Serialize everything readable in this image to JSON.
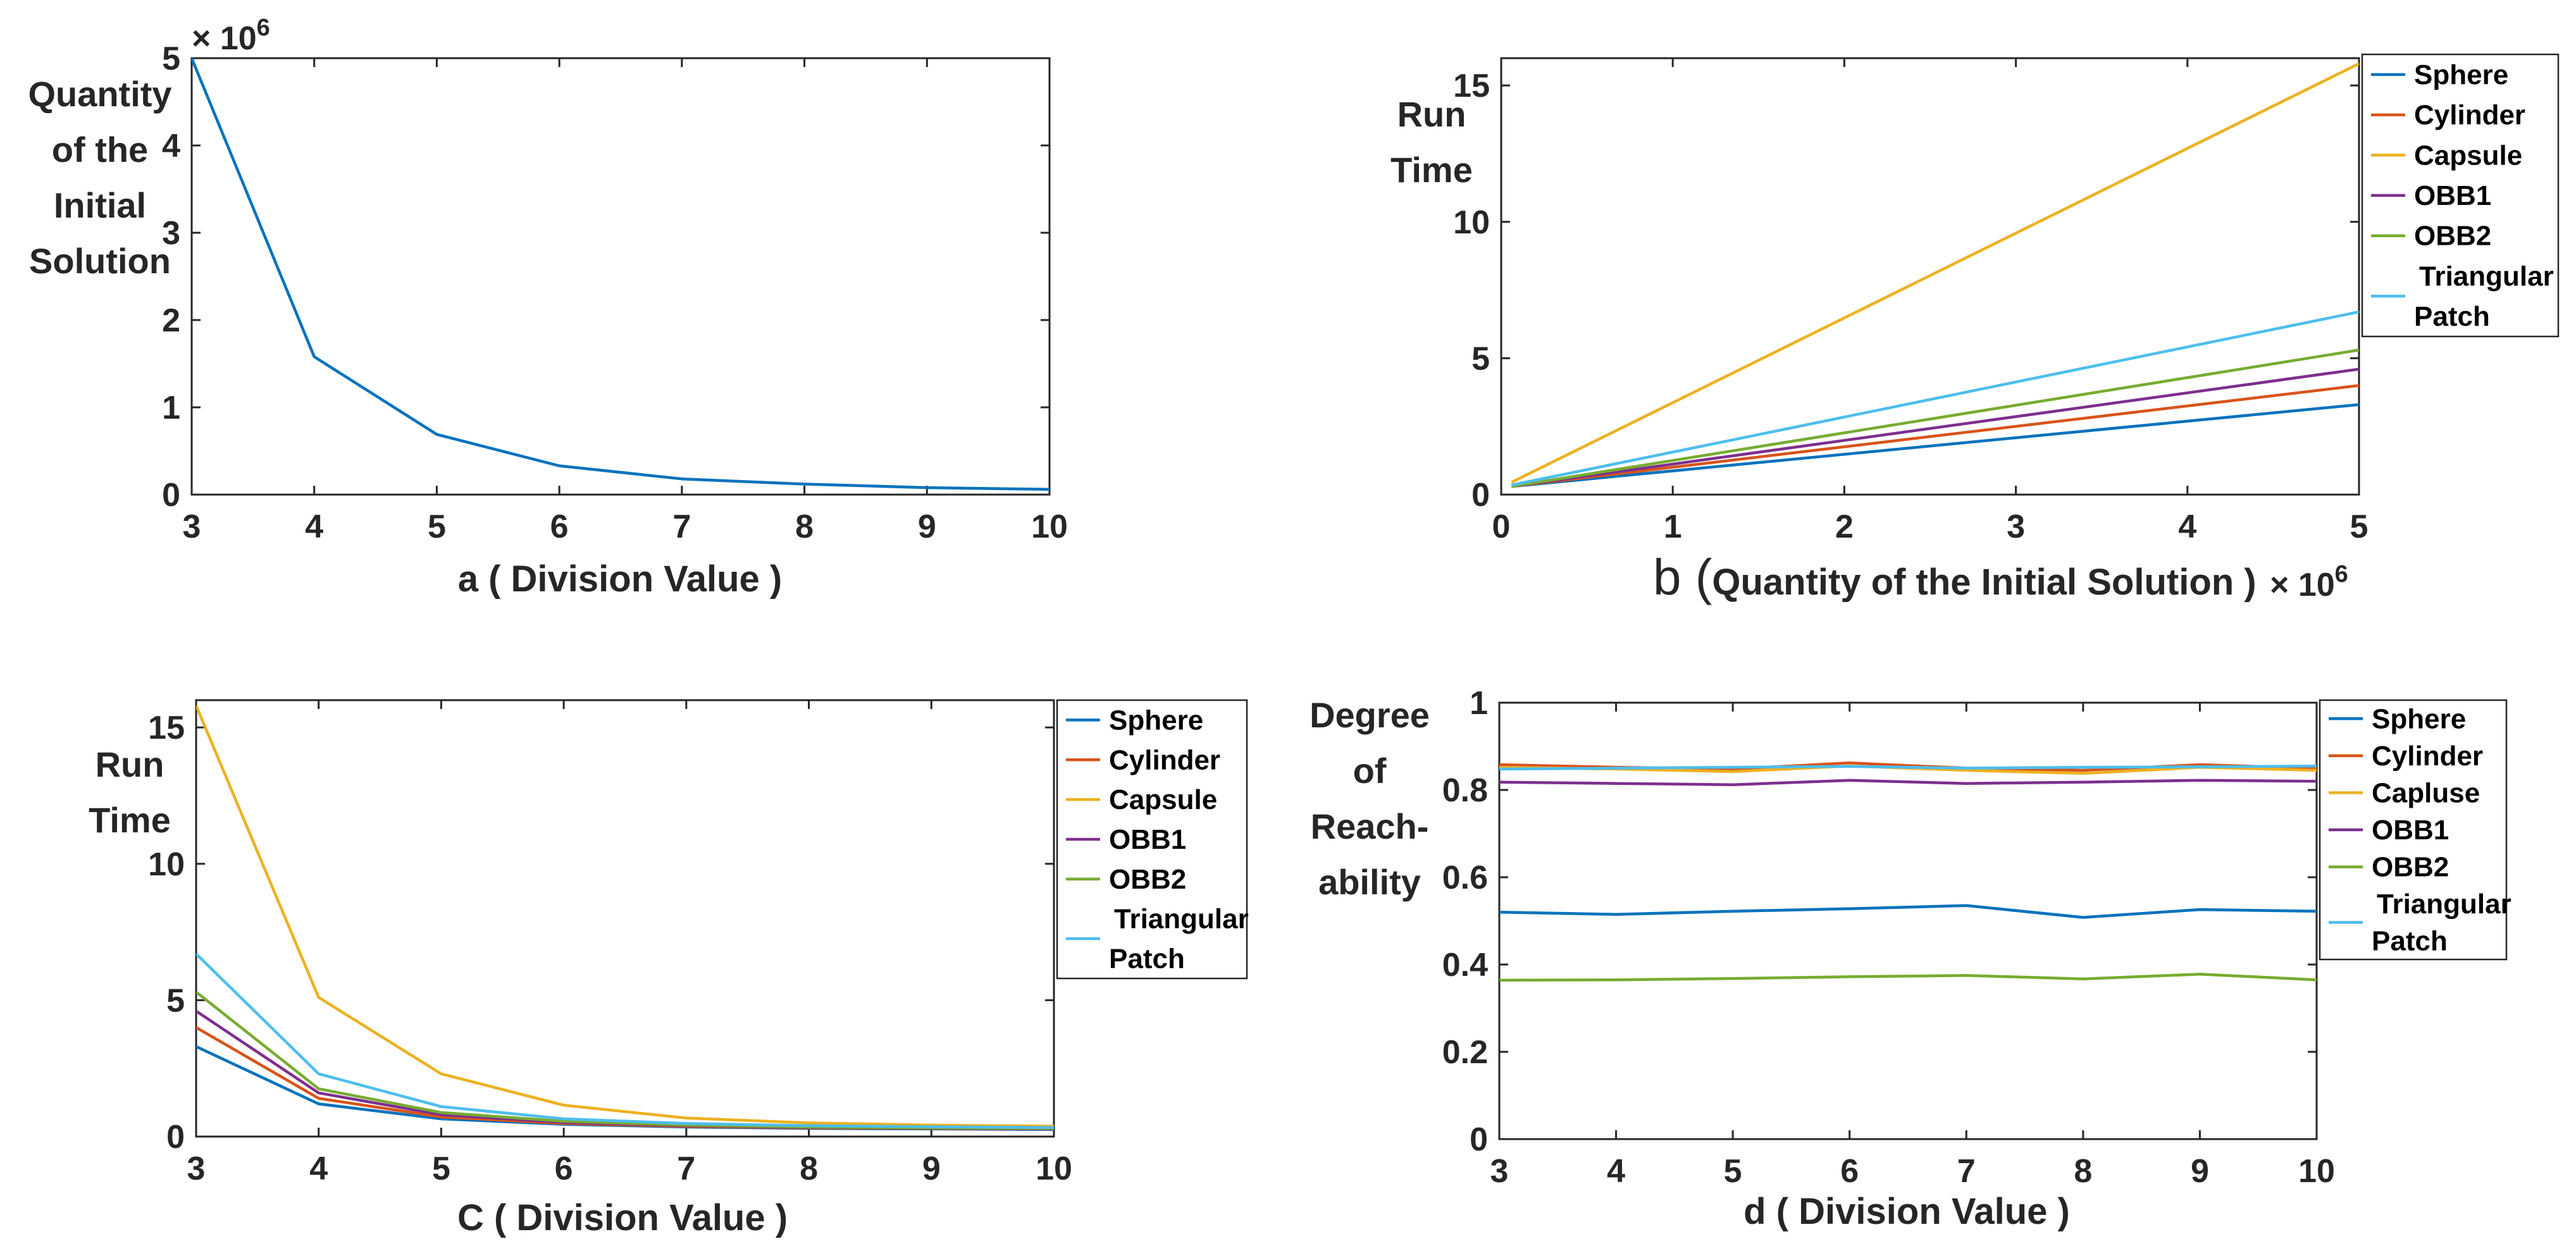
{
  "colors": [
    "#0072BD",
    "#D95319",
    "#EDB120",
    "#7E2F8E",
    "#77AC30",
    "#4DBEEE"
  ],
  "chart_data": [
    {
      "id": "a",
      "type": "line",
      "title": "",
      "xlabel": "a ( Division Value )",
      "ylabel_lines": [
        "Quantity",
        "of the",
        "Initial",
        "Solution"
      ],
      "exponent": "× 10",
      "exponent_power": "6",
      "xlim": [
        3,
        10
      ],
      "ylim": [
        0,
        5
      ],
      "xticks": [
        "3",
        "4",
        "5",
        "6",
        "7",
        "8",
        "9",
        "10"
      ],
      "yticks": [
        "0",
        "1",
        "2",
        "3",
        "4",
        "5"
      ],
      "x": [
        3,
        4,
        5,
        6,
        7,
        8,
        9,
        10
      ],
      "series": [
        {
          "name": "Quantity of the Initial Solution (×10^6)",
          "values": [
            5.0,
            1.58,
            0.69,
            0.33,
            0.18,
            0.12,
            0.08,
            0.06
          ]
        }
      ]
    },
    {
      "id": "b",
      "type": "line",
      "title": "",
      "xlabel_prefix": "b (",
      "xlabel": "Quantity of the Initial Solution )",
      "ylabel_lines": [
        "Run",
        "Time"
      ],
      "x_exponent": "× 10",
      "x_exponent_power": "6",
      "xlim": [
        0,
        5
      ],
      "ylim": [
        0,
        16
      ],
      "xticks": [
        "0",
        "1",
        "2",
        "3",
        "4",
        "5"
      ],
      "yticks": [
        "0",
        "5",
        "10",
        "15"
      ],
      "legend_position": "outside-right",
      "legend": [
        "Sphere",
        "Cylinder",
        "Capsule",
        "OBB1",
        "OBB2",
        "Triangular",
        "Patch"
      ],
      "x": [
        0.06,
        5.0
      ],
      "series": [
        {
          "name": "Sphere",
          "values": [
            0.3,
            3.3
          ]
        },
        {
          "name": "Cylinder",
          "values": [
            0.3,
            4.0
          ]
        },
        {
          "name": "Capsule",
          "values": [
            0.45,
            15.8
          ]
        },
        {
          "name": "OBB1",
          "values": [
            0.3,
            4.6
          ]
        },
        {
          "name": "OBB2",
          "values": [
            0.3,
            5.3
          ]
        },
        {
          "name": "Triangular Patch",
          "values": [
            0.35,
            6.7
          ]
        }
      ]
    },
    {
      "id": "c",
      "type": "line",
      "title": "",
      "xlabel": "C ( Division Value )",
      "ylabel_lines": [
        "Run",
        "Time"
      ],
      "xlim": [
        3,
        10
      ],
      "ylim": [
        0,
        16
      ],
      "xticks": [
        "3",
        "4",
        "5",
        "6",
        "7",
        "8",
        "9",
        "10"
      ],
      "yticks": [
        "0",
        "5",
        "10",
        "15"
      ],
      "legend_position": "outside-right",
      "legend": [
        "Sphere",
        "Cylinder",
        "Capsule",
        "OBB1",
        "OBB2",
        "Triangular",
        "Patch"
      ],
      "x": [
        3,
        4,
        5,
        6,
        7,
        8,
        9,
        10
      ],
      "series": [
        {
          "name": "Sphere",
          "values": [
            3.3,
            1.2,
            0.65,
            0.45,
            0.35,
            0.3,
            0.28,
            0.26
          ]
        },
        {
          "name": "Cylinder",
          "values": [
            4.0,
            1.4,
            0.72,
            0.48,
            0.37,
            0.32,
            0.3,
            0.28
          ]
        },
        {
          "name": "Capsule",
          "values": [
            15.8,
            5.1,
            2.3,
            1.15,
            0.68,
            0.5,
            0.42,
            0.38
          ]
        },
        {
          "name": "OBB1",
          "values": [
            4.6,
            1.6,
            0.8,
            0.52,
            0.4,
            0.34,
            0.31,
            0.29
          ]
        },
        {
          "name": "OBB2",
          "values": [
            5.3,
            1.75,
            0.88,
            0.56,
            0.42,
            0.35,
            0.32,
            0.3
          ]
        },
        {
          "name": "Triangular Patch",
          "values": [
            6.7,
            2.3,
            1.1,
            0.65,
            0.48,
            0.4,
            0.36,
            0.33
          ]
        }
      ]
    },
    {
      "id": "d",
      "type": "line",
      "title": "",
      "xlabel": "d ( Division Value )",
      "ylabel_lines": [
        "Degree",
        "of",
        "Reach-",
        "ability"
      ],
      "xlim": [
        3,
        10
      ],
      "ylim": [
        0,
        1
      ],
      "xticks": [
        "3",
        "4",
        "5",
        "6",
        "7",
        "8",
        "9",
        "10"
      ],
      "yticks": [
        "0",
        "0.2",
        "0.4",
        "0.6",
        "0.8",
        "1"
      ],
      "legend_position": "outside-right",
      "legend": [
        "Sphere",
        "Cylinder",
        "Capluse",
        "OBB1",
        "OBB2",
        "Triangular",
        "Patch"
      ],
      "x": [
        3,
        4,
        5,
        6,
        7,
        8,
        9,
        10
      ],
      "series": [
        {
          "name": "Sphere",
          "values": [
            0.52,
            0.515,
            0.522,
            0.528,
            0.535,
            0.508,
            0.526,
            0.522
          ]
        },
        {
          "name": "Cylinder",
          "values": [
            0.858,
            0.852,
            0.848,
            0.862,
            0.85,
            0.845,
            0.858,
            0.85
          ]
        },
        {
          "name": "Capluse",
          "values": [
            0.852,
            0.848,
            0.842,
            0.855,
            0.845,
            0.838,
            0.852,
            0.845
          ]
        },
        {
          "name": "OBB1",
          "values": [
            0.818,
            0.815,
            0.812,
            0.822,
            0.815,
            0.818,
            0.822,
            0.82
          ]
        },
        {
          "name": "OBB2",
          "values": [
            0.364,
            0.365,
            0.368,
            0.372,
            0.375,
            0.367,
            0.378,
            0.365
          ]
        },
        {
          "name": "Triangular Patch",
          "values": [
            0.848,
            0.85,
            0.852,
            0.854,
            0.85,
            0.852,
            0.853,
            0.855
          ]
        }
      ]
    }
  ]
}
